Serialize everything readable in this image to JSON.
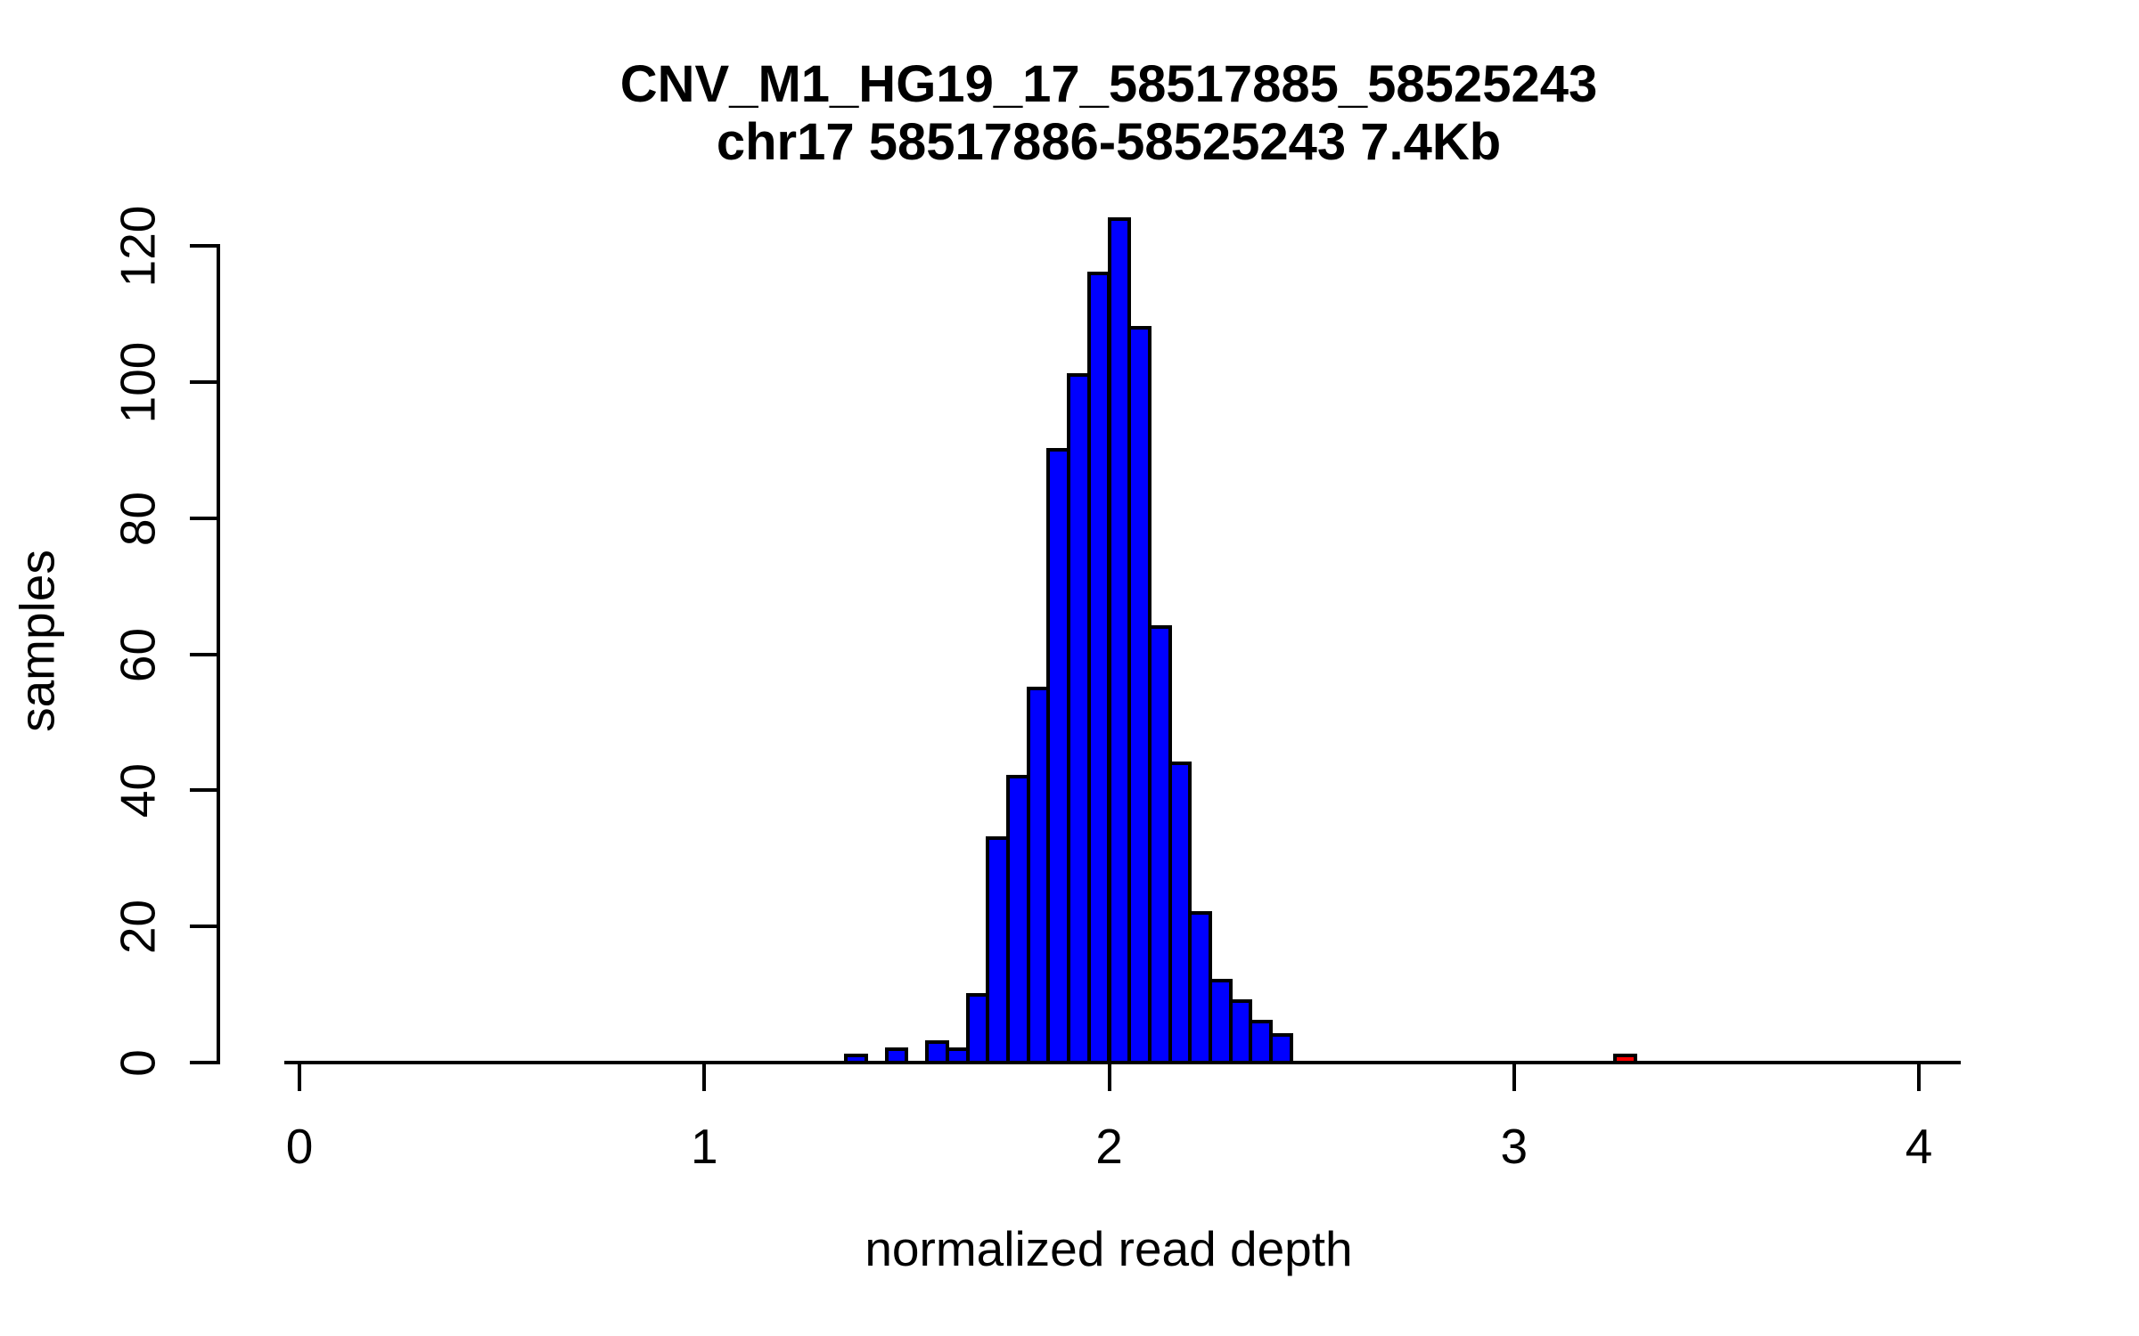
{
  "title": {
    "line1": "CNV_M1_HG19_17_58517885_58525243",
    "line2": "chr17 58517886-58525243 7.4Kb"
  },
  "axes": {
    "x_label": "normalized read depth",
    "y_label": "samples",
    "x_ticks": [
      0,
      1,
      2,
      3,
      4
    ],
    "y_ticks": [
      0,
      20,
      40,
      60,
      80,
      100,
      120
    ]
  },
  "colors": {
    "bar_fill": "#0000ff",
    "outlier_fill": "#ff0000",
    "border": "#000000",
    "background": "#ffffff",
    "text": "#000000"
  },
  "chart_data": {
    "type": "bar",
    "subtype": "histogram",
    "title": "CNV_M1_HG19_17_58517885_58525243",
    "subtitle": "chr17 58517886-58525243 7.4Kb",
    "xlabel": "normalized read depth",
    "ylabel": "samples",
    "xlim": [
      0,
      4.1
    ],
    "ylim": [
      0,
      124
    ],
    "grid": false,
    "legend": false,
    "bin_width": 0.05,
    "bins": [
      {
        "start": 1.35,
        "end": 1.4,
        "count": 1,
        "color": "#0000ff"
      },
      {
        "start": 1.45,
        "end": 1.5,
        "count": 2,
        "color": "#0000ff"
      },
      {
        "start": 1.55,
        "end": 1.6,
        "count": 3,
        "color": "#0000ff"
      },
      {
        "start": 1.6,
        "end": 1.65,
        "count": 2,
        "color": "#0000ff"
      },
      {
        "start": 1.65,
        "end": 1.7,
        "count": 10,
        "color": "#0000ff"
      },
      {
        "start": 1.7,
        "end": 1.75,
        "count": 33,
        "color": "#0000ff"
      },
      {
        "start": 1.75,
        "end": 1.8,
        "count": 42,
        "color": "#0000ff"
      },
      {
        "start": 1.8,
        "end": 1.85,
        "count": 55,
        "color": "#0000ff"
      },
      {
        "start": 1.85,
        "end": 1.9,
        "count": 90,
        "color": "#0000ff"
      },
      {
        "start": 1.9,
        "end": 1.95,
        "count": 101,
        "color": "#0000ff"
      },
      {
        "start": 1.95,
        "end": 2.0,
        "count": 116,
        "color": "#0000ff"
      },
      {
        "start": 2.0,
        "end": 2.05,
        "count": 124,
        "color": "#0000ff"
      },
      {
        "start": 2.05,
        "end": 2.1,
        "count": 108,
        "color": "#0000ff"
      },
      {
        "start": 2.1,
        "end": 2.15,
        "count": 64,
        "color": "#0000ff"
      },
      {
        "start": 2.15,
        "end": 2.2,
        "count": 44,
        "color": "#0000ff"
      },
      {
        "start": 2.2,
        "end": 2.25,
        "count": 22,
        "color": "#0000ff"
      },
      {
        "start": 2.25,
        "end": 2.3,
        "count": 12,
        "color": "#0000ff"
      },
      {
        "start": 2.3,
        "end": 2.35,
        "count": 9,
        "color": "#0000ff"
      },
      {
        "start": 2.35,
        "end": 2.4,
        "count": 6,
        "color": "#0000ff"
      },
      {
        "start": 2.4,
        "end": 2.45,
        "count": 4,
        "color": "#0000ff"
      },
      {
        "start": 3.25,
        "end": 3.3,
        "count": 1,
        "color": "#ff0000"
      }
    ]
  }
}
